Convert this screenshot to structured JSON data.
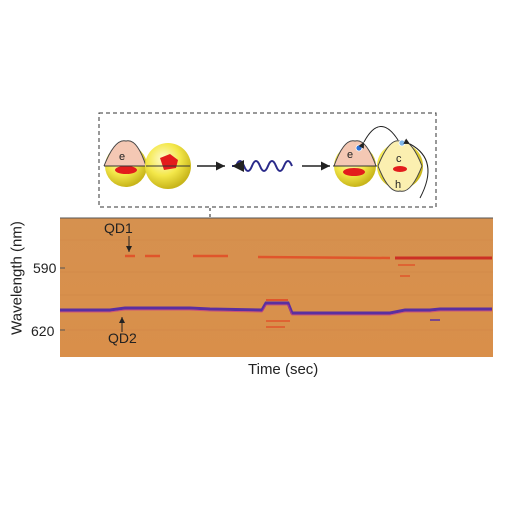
{
  "axis": {
    "ylabel": "Wavelength (nm)",
    "xlabel": "Time (sec)",
    "ticks": [
      "590",
      "620"
    ]
  },
  "annotations": {
    "qd1": "QD1",
    "qd2": "QD2"
  },
  "diagram": {
    "left_electron": "e",
    "right_electron": "e",
    "right_c": "c",
    "right_h": "h"
  },
  "colors": {
    "spectrum_background": "#d98f4e",
    "qd1_trace": "#e0552b",
    "qd2_trace": "#5a2fa0",
    "sphere": "#f3e63a",
    "electron_red": "#e31c1c",
    "photon": "#2a2a8a"
  }
}
